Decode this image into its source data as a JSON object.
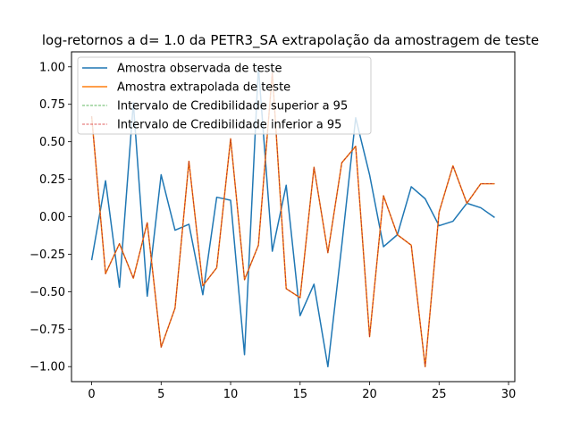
{
  "chart_data": {
    "type": "line",
    "title": "log-retornos a d=  1.0 da PETR3_SA extrapolação da amostragem de teste",
    "xlabel": "",
    "ylabel": "",
    "xlim": [
      -1.45,
      30.45
    ],
    "ylim": [
      -1.1,
      1.1
    ],
    "xticks": [
      0,
      5,
      10,
      15,
      20,
      25,
      30
    ],
    "yticks": [
      -1.0,
      -0.75,
      -0.5,
      -0.25,
      0.0,
      0.25,
      0.5,
      0.75,
      1.0
    ],
    "ytick_labels": [
      "−1.00",
      "−0.75",
      "−0.50",
      "−0.25",
      "0.00",
      "0.25",
      "0.50",
      "0.75",
      "1.00"
    ],
    "xtick_labels": [
      "0",
      "5",
      "10",
      "15",
      "20",
      "25",
      "30"
    ],
    "grid": false,
    "legend_position": "top-left",
    "x": [
      0,
      1,
      2,
      3,
      4,
      5,
      6,
      7,
      8,
      9,
      10,
      11,
      12,
      13,
      14,
      15,
      16,
      17,
      18,
      19,
      20,
      21,
      22,
      23,
      24,
      25,
      26,
      27,
      28,
      29
    ],
    "series": [
      {
        "name": "Amostra observada de teste",
        "color": "#1f77b4",
        "style": "solid",
        "values": [
          -0.29,
          0.24,
          -0.47,
          0.76,
          -0.53,
          0.28,
          -0.09,
          -0.05,
          -0.52,
          0.13,
          0.11,
          -0.92,
          1.0,
          -0.23,
          0.21,
          -0.66,
          -0.45,
          -1.0,
          -0.19,
          0.66,
          0.28,
          -0.2,
          -0.12,
          0.2,
          0.12,
          -0.06,
          -0.03,
          0.09,
          0.06,
          -0.005
        ]
      },
      {
        "name": "Amostra extrapolada de teste",
        "color": "#ff7f0e",
        "style": "solid",
        "values": [
          0.67,
          -0.38,
          -0.18,
          -0.41,
          -0.04,
          -0.87,
          -0.61,
          0.37,
          -0.46,
          -0.34,
          0.52,
          -0.42,
          -0.19,
          0.96,
          -0.48,
          -0.54,
          0.33,
          -0.24,
          0.36,
          0.47,
          -0.8,
          0.14,
          -0.12,
          -0.19,
          -1.0,
          0.03,
          0.34,
          0.09,
          0.22,
          0.22
        ]
      },
      {
        "name": "Intervalo de Credibilidade superior a 95",
        "color": "#2ca02c",
        "style": "dashed",
        "values": [
          0.67,
          -0.38,
          -0.18,
          -0.41,
          -0.04,
          -0.87,
          -0.61,
          0.37,
          -0.46,
          -0.34,
          0.52,
          -0.42,
          -0.19,
          0.96,
          -0.48,
          -0.54,
          0.33,
          -0.24,
          0.36,
          0.47,
          -0.8,
          0.14,
          -0.12,
          -0.19,
          -1.0,
          0.03,
          0.34,
          0.09,
          0.22,
          0.22
        ]
      },
      {
        "name": "Intervalo de Credibilidade inferior a 95",
        "color": "#d62728",
        "style": "dashed",
        "values": [
          0.67,
          -0.38,
          -0.18,
          -0.41,
          -0.04,
          -0.87,
          -0.61,
          0.37,
          -0.46,
          -0.34,
          0.52,
          -0.42,
          -0.19,
          0.96,
          -0.48,
          -0.54,
          0.33,
          -0.24,
          0.36,
          0.47,
          -0.8,
          0.14,
          -0.12,
          -0.19,
          -1.0,
          0.03,
          0.34,
          0.09,
          0.22,
          0.22
        ]
      }
    ]
  }
}
